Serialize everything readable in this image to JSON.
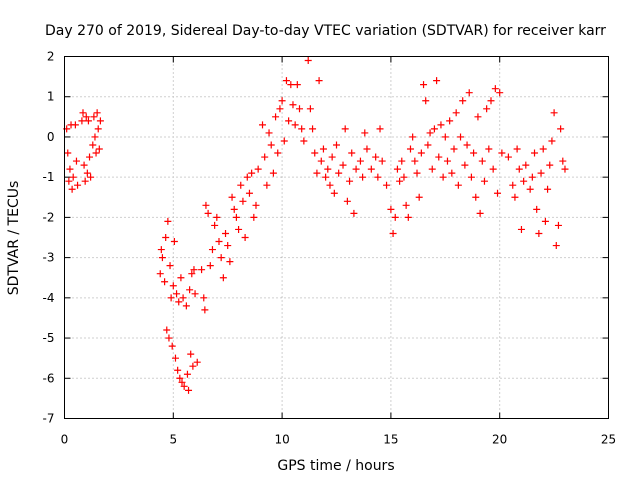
{
  "chart_data": {
    "type": "scatter",
    "title": "Day 270 of 2019, Sidereal Day-to-day VTEC variation (SDTVAR) for receiver karr",
    "xlabel": "GPS time / hours",
    "ylabel": "SDTVAR / TECUs",
    "xlim": [
      0,
      25
    ],
    "ylim": [
      -7,
      2
    ],
    "xticks": [
      "0",
      "5",
      "10",
      "15",
      "20",
      "25"
    ],
    "yticks": [
      "-7",
      "-6",
      "-5",
      "-4",
      "-3",
      "-2",
      "-1",
      "0",
      "1",
      "2"
    ],
    "grid": true,
    "marker": "+",
    "color": "#ff0000",
    "series": [
      {
        "name": "SDTVAR",
        "points": [
          [
            0.1,
            0.2
          ],
          [
            0.15,
            -0.4
          ],
          [
            0.2,
            -1.1
          ],
          [
            0.25,
            -0.8
          ],
          [
            0.3,
            0.3
          ],
          [
            0.35,
            -1.3
          ],
          [
            0.4,
            -1.0
          ],
          [
            0.5,
            0.3
          ],
          [
            0.55,
            -0.6
          ],
          [
            0.6,
            -1.2
          ],
          [
            0.8,
            0.4
          ],
          [
            0.85,
            0.6
          ],
          [
            0.9,
            -0.7
          ],
          [
            0.95,
            -1.1
          ],
          [
            1.0,
            0.5
          ],
          [
            1.05,
            -0.9
          ],
          [
            1.1,
            0.4
          ],
          [
            1.15,
            -0.5
          ],
          [
            1.2,
            -1.0
          ],
          [
            1.3,
            -0.2
          ],
          [
            1.35,
            0.5
          ],
          [
            1.4,
            0.0
          ],
          [
            1.45,
            -0.4
          ],
          [
            1.5,
            0.6
          ],
          [
            1.55,
            0.2
          ],
          [
            1.6,
            -0.3
          ],
          [
            1.65,
            0.4
          ],
          [
            4.4,
            -3.4
          ],
          [
            4.45,
            -2.8
          ],
          [
            4.5,
            -3.0
          ],
          [
            4.6,
            -3.6
          ],
          [
            4.65,
            -2.5
          ],
          [
            4.7,
            -4.8
          ],
          [
            4.75,
            -2.1
          ],
          [
            4.8,
            -5.0
          ],
          [
            4.85,
            -3.2
          ],
          [
            4.9,
            -4.0
          ],
          [
            4.95,
            -5.2
          ],
          [
            5.0,
            -3.7
          ],
          [
            5.05,
            -2.6
          ],
          [
            5.1,
            -5.5
          ],
          [
            5.15,
            -3.9
          ],
          [
            5.2,
            -5.8
          ],
          [
            5.25,
            -4.1
          ],
          [
            5.3,
            -6.0
          ],
          [
            5.35,
            -3.5
          ],
          [
            5.4,
            -6.1
          ],
          [
            5.45,
            -4.0
          ],
          [
            5.5,
            -6.2
          ],
          [
            5.6,
            -4.2
          ],
          [
            5.65,
            -5.9
          ],
          [
            5.7,
            -6.3
          ],
          [
            5.75,
            -3.8
          ],
          [
            5.8,
            -5.4
          ],
          [
            5.85,
            -3.4
          ],
          [
            5.9,
            -5.7
          ],
          [
            5.95,
            -3.3
          ],
          [
            6.0,
            -3.9
          ],
          [
            6.1,
            -5.6
          ],
          [
            6.3,
            -3.3
          ],
          [
            6.4,
            -4.0
          ],
          [
            6.45,
            -4.3
          ],
          [
            6.5,
            -1.7
          ],
          [
            6.6,
            -1.9
          ],
          [
            6.7,
            -3.2
          ],
          [
            6.8,
            -2.8
          ],
          [
            6.9,
            -2.2
          ],
          [
            7.0,
            -2.0
          ],
          [
            7.1,
            -2.6
          ],
          [
            7.2,
            -3.0
          ],
          [
            7.3,
            -3.5
          ],
          [
            7.4,
            -2.4
          ],
          [
            7.5,
            -2.7
          ],
          [
            7.6,
            -3.1
          ],
          [
            7.7,
            -1.5
          ],
          [
            7.8,
            -1.8
          ],
          [
            7.9,
            -2.0
          ],
          [
            8.0,
            -2.3
          ],
          [
            8.1,
            -1.2
          ],
          [
            8.2,
            -1.6
          ],
          [
            8.3,
            -2.5
          ],
          [
            8.4,
            -1.0
          ],
          [
            8.5,
            -1.4
          ],
          [
            8.6,
            -0.9
          ],
          [
            8.7,
            -2.0
          ],
          [
            8.8,
            -1.7
          ],
          [
            8.9,
            -0.8
          ],
          [
            9.1,
            0.3
          ],
          [
            9.2,
            -0.5
          ],
          [
            9.3,
            -1.2
          ],
          [
            9.4,
            0.1
          ],
          [
            9.5,
            -0.2
          ],
          [
            9.6,
            -0.9
          ],
          [
            9.7,
            0.5
          ],
          [
            9.8,
            -0.4
          ],
          [
            9.9,
            0.7
          ],
          [
            10.0,
            0.9
          ],
          [
            10.1,
            -0.1
          ],
          [
            10.2,
            1.4
          ],
          [
            10.3,
            0.4
          ],
          [
            10.4,
            1.3
          ],
          [
            10.5,
            0.8
          ],
          [
            10.6,
            0.3
          ],
          [
            10.7,
            1.3
          ],
          [
            10.8,
            0.7
          ],
          [
            10.9,
            0.2
          ],
          [
            11.0,
            -0.1
          ],
          [
            11.2,
            1.9
          ],
          [
            11.3,
            0.7
          ],
          [
            11.4,
            0.2
          ],
          [
            11.5,
            -0.4
          ],
          [
            11.6,
            -0.9
          ],
          [
            11.7,
            1.4
          ],
          [
            11.8,
            -0.6
          ],
          [
            11.9,
            -0.3
          ],
          [
            12.0,
            -1.0
          ],
          [
            12.1,
            -0.8
          ],
          [
            12.2,
            -1.2
          ],
          [
            12.3,
            -0.5
          ],
          [
            12.4,
            -1.4
          ],
          [
            12.5,
            -0.2
          ],
          [
            12.6,
            -0.9
          ],
          [
            12.8,
            -0.7
          ],
          [
            12.9,
            0.2
          ],
          [
            13.0,
            -1.6
          ],
          [
            13.1,
            -1.1
          ],
          [
            13.2,
            -0.4
          ],
          [
            13.3,
            -1.9
          ],
          [
            13.4,
            -0.8
          ],
          [
            13.6,
            -0.6
          ],
          [
            13.7,
            -1.0
          ],
          [
            13.8,
            0.1
          ],
          [
            13.9,
            -0.3
          ],
          [
            14.1,
            -0.8
          ],
          [
            14.3,
            -0.5
          ],
          [
            14.4,
            -1.0
          ],
          [
            14.5,
            0.2
          ],
          [
            14.6,
            -0.6
          ],
          [
            14.8,
            -1.2
          ],
          [
            15.0,
            -1.8
          ],
          [
            15.1,
            -2.4
          ],
          [
            15.2,
            -2.0
          ],
          [
            15.3,
            -0.8
          ],
          [
            15.4,
            -1.1
          ],
          [
            15.5,
            -0.6
          ],
          [
            15.6,
            -1.0
          ],
          [
            15.7,
            -1.7
          ],
          [
            15.8,
            -2.0
          ],
          [
            15.9,
            -0.3
          ],
          [
            16.0,
            0.0
          ],
          [
            16.1,
            -0.6
          ],
          [
            16.2,
            -0.9
          ],
          [
            16.3,
            -1.5
          ],
          [
            16.4,
            -0.4
          ],
          [
            16.5,
            1.3
          ],
          [
            16.6,
            0.9
          ],
          [
            16.7,
            -0.2
          ],
          [
            16.8,
            0.1
          ],
          [
            16.9,
            -0.8
          ],
          [
            17.0,
            0.2
          ],
          [
            17.1,
            1.4
          ],
          [
            17.2,
            -0.5
          ],
          [
            17.3,
            0.3
          ],
          [
            17.4,
            -1.0
          ],
          [
            17.5,
            0.0
          ],
          [
            17.6,
            -0.6
          ],
          [
            17.7,
            0.4
          ],
          [
            17.8,
            -0.9
          ],
          [
            17.9,
            -0.3
          ],
          [
            18.0,
            0.6
          ],
          [
            18.1,
            -1.2
          ],
          [
            18.2,
            0.0
          ],
          [
            18.3,
            0.9
          ],
          [
            18.4,
            -0.7
          ],
          [
            18.5,
            -0.2
          ],
          [
            18.6,
            1.1
          ],
          [
            18.7,
            -1.0
          ],
          [
            18.8,
            -0.4
          ],
          [
            18.9,
            -1.5
          ],
          [
            19.0,
            0.5
          ],
          [
            19.1,
            -1.9
          ],
          [
            19.2,
            -0.6
          ],
          [
            19.3,
            -1.1
          ],
          [
            19.4,
            0.7
          ],
          [
            19.5,
            -0.3
          ],
          [
            19.6,
            0.9
          ],
          [
            19.7,
            -0.8
          ],
          [
            19.8,
            1.2
          ],
          [
            19.9,
            -1.4
          ],
          [
            20.0,
            1.1
          ],
          [
            20.1,
            -0.4
          ],
          [
            20.4,
            -0.5
          ],
          [
            20.6,
            -1.2
          ],
          [
            20.7,
            -1.5
          ],
          [
            20.8,
            -0.3
          ],
          [
            20.9,
            -0.8
          ],
          [
            21.0,
            -2.3
          ],
          [
            21.1,
            -1.1
          ],
          [
            21.2,
            -0.7
          ],
          [
            21.4,
            -1.3
          ],
          [
            21.5,
            -1.0
          ],
          [
            21.6,
            -0.4
          ],
          [
            21.7,
            -1.8
          ],
          [
            21.8,
            -2.4
          ],
          [
            21.9,
            -0.9
          ],
          [
            22.0,
            -0.3
          ],
          [
            22.1,
            -2.1
          ],
          [
            22.2,
            -1.3
          ],
          [
            22.3,
            -0.7
          ],
          [
            22.4,
            -0.1
          ],
          [
            22.5,
            0.6
          ],
          [
            22.6,
            -2.7
          ],
          [
            22.7,
            -2.2
          ],
          [
            22.8,
            0.2
          ],
          [
            22.9,
            -0.6
          ],
          [
            23.0,
            -0.8
          ]
        ]
      }
    ]
  }
}
